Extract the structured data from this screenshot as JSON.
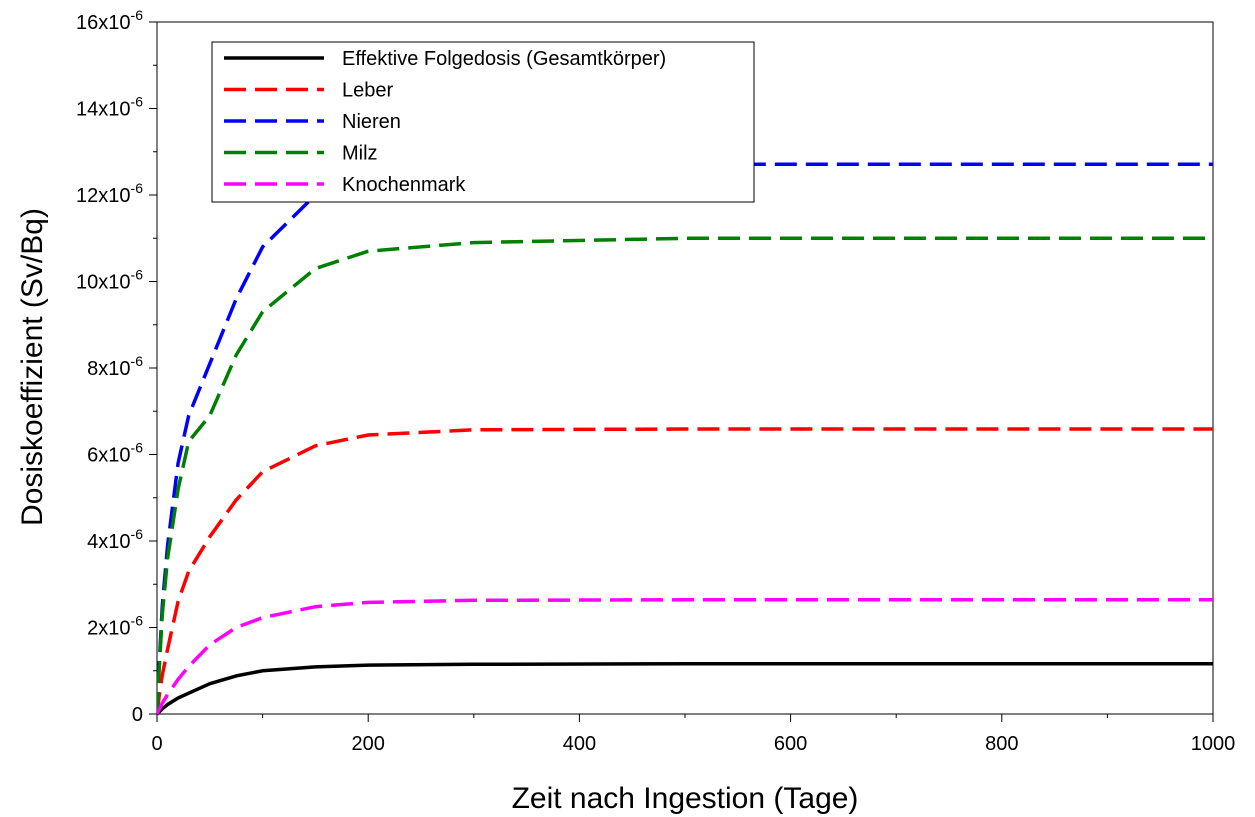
{
  "chart_data": {
    "type": "line",
    "xlabel": "Zeit nach Ingestion (Tage)",
    "ylabel": "Dosiskoeffizient (Sv/Bq)",
    "xlim": [
      0,
      1000
    ],
    "ylim": [
      0,
      1.6e-05
    ],
    "grid": false,
    "legend_position": "top-left",
    "x_ticks": [
      {
        "value": 0,
        "label": "0"
      },
      {
        "value": 200,
        "label": "200"
      },
      {
        "value": 400,
        "label": "400"
      },
      {
        "value": 600,
        "label": "600"
      },
      {
        "value": 800,
        "label": "800"
      },
      {
        "value": 1000,
        "label": "1000"
      }
    ],
    "y_ticks": [
      {
        "value": 0,
        "mantissa": "0",
        "exponent": ""
      },
      {
        "value": 2e-06,
        "mantissa": "2x10",
        "exponent": "-6"
      },
      {
        "value": 4e-06,
        "mantissa": "4x10",
        "exponent": "-6"
      },
      {
        "value": 6e-06,
        "mantissa": "6x10",
        "exponent": "-6"
      },
      {
        "value": 8e-06,
        "mantissa": "8x10",
        "exponent": "-6"
      },
      {
        "value": 1e-05,
        "mantissa": "10x10",
        "exponent": "-6"
      },
      {
        "value": 1.2e-05,
        "mantissa": "12x10",
        "exponent": "-6"
      },
      {
        "value": 1.4e-05,
        "mantissa": "14x10",
        "exponent": "-6"
      },
      {
        "value": 1.6e-05,
        "mantissa": "16x10",
        "exponent": "-6"
      }
    ],
    "series": [
      {
        "name": "Effektive Folgedosis (Gesamtkörper)",
        "color": "#000000",
        "dash": "solid",
        "x": [
          0,
          1,
          2,
          5,
          10,
          20,
          30,
          50,
          75,
          100,
          150,
          200,
          300,
          500,
          700,
          1000
        ],
        "y": [
          0,
          2e-08,
          4.5e-08,
          1.2e-07,
          2.2e-07,
          3.7e-07,
          4.8e-07,
          7e-07,
          8.8e-07,
          1e-06,
          1.09e-06,
          1.13e-06,
          1.15e-06,
          1.16e-06,
          1.16e-06,
          1.16e-06
        ]
      },
      {
        "name": "Leber",
        "color": "#ff0000",
        "dash": "dashed",
        "x": [
          0,
          1,
          2,
          5,
          10,
          20,
          30,
          50,
          75,
          100,
          150,
          200,
          300,
          500,
          700,
          1000
        ],
        "y": [
          0,
          2e-07,
          4e-07,
          9e-07,
          1.5e-06,
          2.6e-06,
          3.3e-06,
          4.1e-06,
          4.95e-06,
          5.6e-06,
          6.2e-06,
          6.45e-06,
          6.57e-06,
          6.59e-06,
          6.59e-06,
          6.59e-06
        ]
      },
      {
        "name": "Nieren",
        "color": "#0000ff",
        "dash": "dashed",
        "x": [
          0,
          1,
          2,
          5,
          10,
          20,
          30,
          50,
          75,
          100,
          150,
          200,
          300,
          500,
          700,
          1000
        ],
        "y": [
          0,
          6e-07,
          1.1e-06,
          2.5e-06,
          3.9e-06,
          5.8e-06,
          6.9e-06,
          8.1e-06,
          9.6e-06,
          1.08e-05,
          1.2e-05,
          1.25e-05,
          1.27e-05,
          1.271e-05,
          1.271e-05,
          1.271e-05
        ]
      },
      {
        "name": "Milz",
        "color": "#008000",
        "dash": "dashed",
        "x": [
          0,
          1,
          2,
          5,
          10,
          20,
          30,
          50,
          75,
          100,
          150,
          200,
          300,
          500,
          700,
          1000
        ],
        "y": [
          0,
          5e-07,
          1e-06,
          2.3e-06,
          3.6e-06,
          5.2e-06,
          6.3e-06,
          6.9e-06,
          8.3e-06,
          9.3e-06,
          1.03e-05,
          1.07e-05,
          1.09e-05,
          1.1e-05,
          1.1e-05,
          1.1e-05
        ]
      },
      {
        "name": "Knochenmark",
        "color": "#ff00ff",
        "dash": "dashed",
        "x": [
          0,
          1,
          2,
          5,
          10,
          20,
          30,
          50,
          75,
          100,
          150,
          200,
          300,
          500,
          700,
          1000
        ],
        "y": [
          0,
          5e-08,
          1e-07,
          2.5e-07,
          4.5e-07,
          8e-07,
          1.1e-06,
          1.6e-06,
          2e-06,
          2.23e-06,
          2.48e-06,
          2.58e-06,
          2.63e-06,
          2.64e-06,
          2.64e-06,
          2.64e-06
        ]
      }
    ]
  }
}
